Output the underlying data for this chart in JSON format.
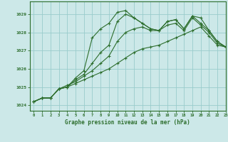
{
  "title": "Graphe pression niveau de la mer (hPa)",
  "background_color": "#cce8e8",
  "grid_color": "#99cccc",
  "line_color": "#2d6e2d",
  "xlim": [
    -0.5,
    23
  ],
  "ylim": [
    1023.7,
    1029.7
  ],
  "yticks": [
    1024,
    1025,
    1026,
    1027,
    1028,
    1029
  ],
  "xticks": [
    0,
    1,
    2,
    3,
    4,
    5,
    6,
    7,
    8,
    9,
    10,
    11,
    12,
    13,
    14,
    15,
    16,
    17,
    18,
    19,
    20,
    21,
    22,
    23
  ],
  "series": [
    [
      1024.2,
      1024.4,
      1024.4,
      1024.9,
      1025.0,
      1025.5,
      1025.9,
      1027.7,
      1028.2,
      1028.5,
      1029.1,
      1029.2,
      1028.8,
      1028.5,
      1028.2,
      1028.1,
      1028.6,
      1028.7,
      1028.2,
      1028.9,
      1028.8,
      1028.1,
      1027.5,
      1027.2
    ],
    [
      1024.2,
      1024.4,
      1024.4,
      1024.9,
      1025.0,
      1025.4,
      1025.7,
      1026.3,
      1026.9,
      1027.3,
      1028.6,
      1029.0,
      1028.8,
      1028.5,
      1028.2,
      1028.1,
      1028.6,
      1028.7,
      1028.2,
      1028.9,
      1028.5,
      1028.1,
      1027.5,
      1027.2
    ],
    [
      1024.2,
      1024.4,
      1024.4,
      1024.9,
      1025.1,
      1025.3,
      1025.6,
      1025.9,
      1026.3,
      1026.7,
      1027.5,
      1028.0,
      1028.2,
      1028.3,
      1028.1,
      1028.1,
      1028.4,
      1028.5,
      1028.1,
      1028.8,
      1028.4,
      1028.0,
      1027.4,
      1027.2
    ],
    [
      1024.2,
      1024.4,
      1024.4,
      1024.9,
      1025.0,
      1025.2,
      1025.4,
      1025.6,
      1025.8,
      1026.0,
      1026.3,
      1026.6,
      1026.9,
      1027.1,
      1027.2,
      1027.3,
      1027.5,
      1027.7,
      1027.9,
      1028.1,
      1028.3,
      1027.8,
      1027.3,
      1027.2
    ]
  ]
}
